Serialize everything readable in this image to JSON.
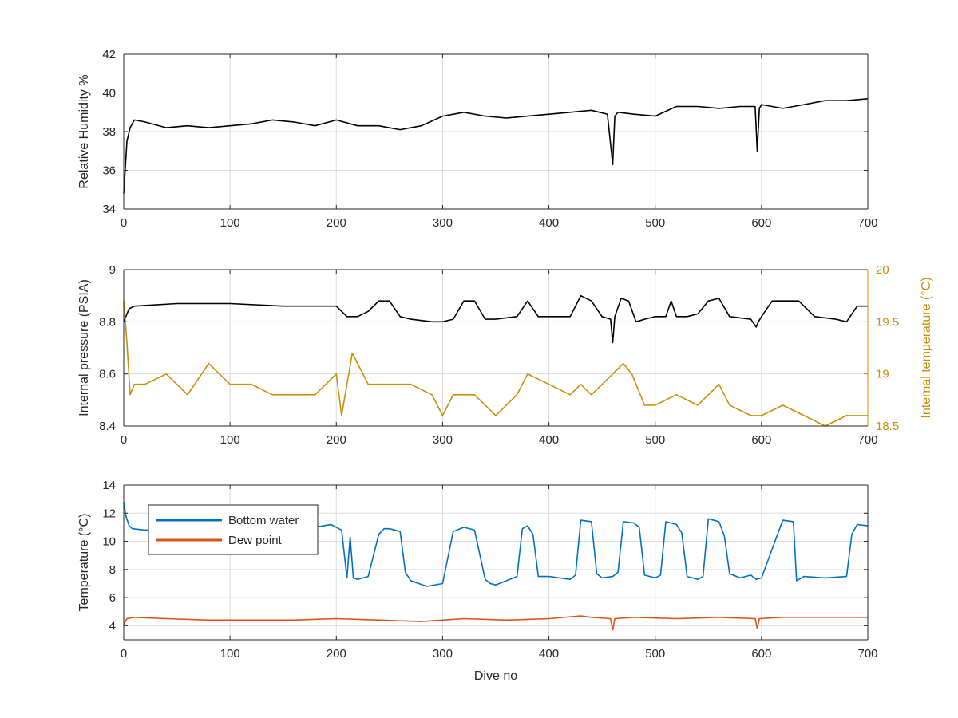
{
  "colors": {
    "black": "#000000",
    "blue": "#0072BD",
    "orange": "#D95319",
    "gold": "#C8900A",
    "grid": "#dcdcdc",
    "axis": "#262626"
  },
  "chart_data": [
    {
      "type": "line",
      "xlabel": "",
      "ylabel": "Relative Humidity %",
      "xlim": [
        0,
        700
      ],
      "ylim": [
        34,
        42
      ],
      "x_ticks": [
        "0",
        "100",
        "200",
        "300",
        "400",
        "500",
        "600",
        "700"
      ],
      "y_ticks": [
        "34",
        "36",
        "38",
        "40",
        "42"
      ],
      "grid": true,
      "series": [
        {
          "color": "black",
          "x": [
            0,
            3,
            6,
            10,
            20,
            40,
            60,
            80,
            100,
            120,
            140,
            160,
            180,
            200,
            220,
            240,
            260,
            280,
            300,
            320,
            340,
            360,
            380,
            400,
            420,
            440,
            455,
            460,
            462,
            465,
            480,
            500,
            520,
            540,
            560,
            580,
            594,
            596,
            598,
            600,
            620,
            640,
            660,
            680,
            700
          ],
          "y": [
            34.8,
            37.5,
            38.2,
            38.6,
            38.5,
            38.2,
            38.3,
            38.2,
            38.3,
            38.4,
            38.6,
            38.5,
            38.3,
            38.6,
            38.3,
            38.3,
            38.1,
            38.3,
            38.8,
            39.0,
            38.8,
            38.7,
            38.8,
            38.9,
            39.0,
            39.1,
            38.9,
            36.3,
            38.8,
            39.0,
            38.9,
            38.8,
            39.3,
            39.3,
            39.2,
            39.3,
            39.3,
            37.0,
            39.2,
            39.4,
            39.2,
            39.4,
            39.6,
            39.6,
            39.7
          ]
        }
      ]
    },
    {
      "type": "line",
      "xlabel": "",
      "ylabel": "Internal pressure (PSIA)",
      "ylabel_right": "Internal temperature (°C)",
      "xlim": [
        0,
        700
      ],
      "ylim": [
        8.4,
        9.0
      ],
      "ylim_right": [
        18.5,
        20.0
      ],
      "x_ticks": [
        "0",
        "100",
        "200",
        "300",
        "400",
        "500",
        "600",
        "700"
      ],
      "y_ticks": [
        "8.4",
        "8.6",
        "8.8",
        "9"
      ],
      "y_ticks_right": [
        "18.5",
        "19",
        "19.5",
        "20"
      ],
      "grid": true,
      "series": [
        {
          "axis": "left",
          "color": "black",
          "x": [
            0,
            5,
            10,
            50,
            100,
            150,
            200,
            210,
            220,
            230,
            240,
            250,
            260,
            270,
            290,
            300,
            310,
            320,
            330,
            340,
            350,
            370,
            380,
            390,
            400,
            420,
            430,
            440,
            450,
            458,
            460,
            462,
            468,
            475,
            482,
            490,
            500,
            510,
            515,
            520,
            530,
            540,
            550,
            560,
            570,
            590,
            595,
            597,
            600,
            610,
            620,
            635,
            650,
            670,
            680,
            690,
            700
          ],
          "y": [
            8.8,
            8.85,
            8.86,
            8.87,
            8.87,
            8.86,
            8.86,
            8.82,
            8.82,
            8.84,
            8.88,
            8.88,
            8.82,
            8.81,
            8.8,
            8.8,
            8.81,
            8.88,
            8.88,
            8.81,
            8.81,
            8.82,
            8.88,
            8.82,
            8.82,
            8.82,
            8.9,
            8.88,
            8.82,
            8.81,
            8.72,
            8.82,
            8.89,
            8.88,
            8.8,
            8.81,
            8.82,
            8.82,
            8.88,
            8.82,
            8.82,
            8.83,
            8.88,
            8.89,
            8.82,
            8.81,
            8.78,
            8.8,
            8.82,
            8.88,
            8.88,
            8.88,
            8.82,
            8.81,
            8.8,
            8.86,
            8.86
          ]
        },
        {
          "axis": "right",
          "color": "gold",
          "x": [
            0,
            3,
            6,
            10,
            20,
            40,
            60,
            80,
            100,
            120,
            140,
            160,
            180,
            200,
            205,
            215,
            230,
            250,
            270,
            290,
            300,
            310,
            330,
            350,
            370,
            380,
            400,
            420,
            430,
            440,
            460,
            470,
            478,
            490,
            500,
            520,
            540,
            550,
            560,
            570,
            590,
            600,
            620,
            640,
            660,
            680,
            700
          ],
          "y": [
            19.7,
            19.3,
            18.8,
            18.9,
            18.9,
            19.0,
            18.8,
            19.1,
            18.9,
            18.9,
            18.8,
            18.8,
            18.8,
            19.0,
            18.6,
            19.2,
            18.9,
            18.9,
            18.9,
            18.8,
            18.6,
            18.8,
            18.8,
            18.6,
            18.8,
            19.0,
            18.9,
            18.8,
            18.9,
            18.8,
            19.0,
            19.1,
            19.0,
            18.7,
            18.7,
            18.8,
            18.7,
            18.8,
            18.9,
            18.7,
            18.6,
            18.6,
            18.7,
            18.6,
            18.5,
            18.6,
            18.6
          ]
        }
      ]
    },
    {
      "type": "line",
      "xlabel": "Dive no",
      "ylabel": "Temperature (°C)",
      "xlim": [
        0,
        700
      ],
      "ylim": [
        3,
        14
      ],
      "x_ticks": [
        "0",
        "100",
        "200",
        "300",
        "400",
        "500",
        "600",
        "700"
      ],
      "y_ticks": [
        "4",
        "6",
        "8",
        "10",
        "12",
        "14"
      ],
      "grid": true,
      "legend": {
        "placement": "top-left",
        "entries": [
          "Bottom water",
          "Dew point"
        ]
      },
      "series": [
        {
          "name": "Bottom water",
          "color": "blue",
          "x": [
            0,
            2,
            5,
            8,
            20,
            60,
            100,
            150,
            180,
            195,
            205,
            210,
            213,
            216,
            220,
            230,
            240,
            245,
            250,
            260,
            265,
            270,
            285,
            300,
            310,
            320,
            330,
            340,
            345,
            350,
            360,
            370,
            375,
            380,
            385,
            390,
            400,
            410,
            420,
            425,
            430,
            440,
            445,
            450,
            460,
            465,
            470,
            480,
            485,
            490,
            500,
            505,
            510,
            520,
            525,
            530,
            540,
            545,
            550,
            560,
            565,
            570,
            580,
            590,
            595,
            600,
            620,
            630,
            633,
            640,
            660,
            680,
            685,
            690,
            700
          ],
          "y": [
            12.8,
            11.8,
            11.1,
            10.9,
            10.8,
            10.9,
            10.9,
            11.0,
            11.0,
            11.2,
            10.8,
            7.4,
            10.3,
            7.4,
            7.3,
            7.5,
            10.5,
            10.9,
            10.9,
            10.7,
            7.8,
            7.2,
            6.8,
            7.0,
            10.7,
            11.0,
            10.8,
            7.3,
            7.0,
            6.9,
            7.2,
            7.5,
            10.9,
            11.1,
            10.5,
            7.5,
            7.5,
            7.4,
            7.3,
            7.6,
            11.5,
            11.4,
            7.7,
            7.4,
            7.5,
            7.8,
            11.4,
            11.3,
            11.0,
            7.6,
            7.4,
            7.6,
            11.4,
            11.2,
            10.6,
            7.5,
            7.3,
            7.5,
            11.6,
            11.4,
            10.4,
            7.7,
            7.4,
            7.6,
            7.3,
            7.4,
            11.5,
            11.4,
            7.2,
            7.5,
            7.4,
            7.5,
            10.5,
            11.2,
            11.1
          ]
        },
        {
          "name": "Dew point",
          "color": "orange",
          "x": [
            0,
            3,
            10,
            40,
            80,
            120,
            160,
            200,
            240,
            280,
            320,
            360,
            400,
            430,
            440,
            458,
            460,
            462,
            480,
            520,
            560,
            594,
            596,
            598,
            620,
            660,
            700
          ],
          "y": [
            4.1,
            4.5,
            4.6,
            4.5,
            4.4,
            4.4,
            4.4,
            4.5,
            4.4,
            4.3,
            4.5,
            4.4,
            4.5,
            4.7,
            4.6,
            4.5,
            3.7,
            4.5,
            4.6,
            4.5,
            4.6,
            4.5,
            3.8,
            4.5,
            4.6,
            4.6,
            4.6
          ]
        }
      ]
    }
  ]
}
